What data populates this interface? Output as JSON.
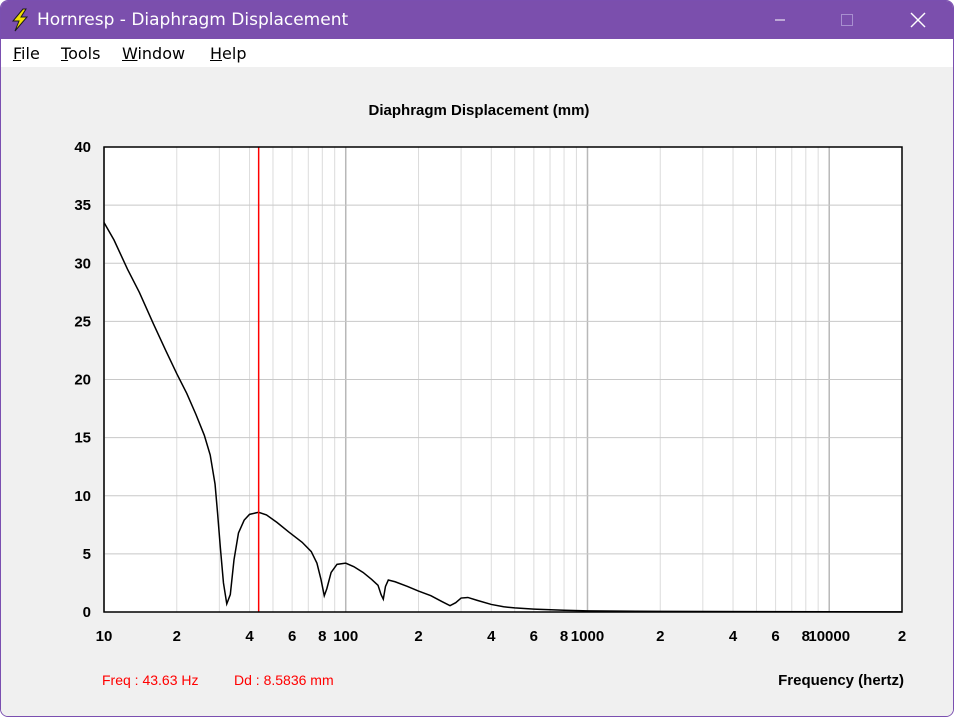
{
  "window": {
    "title": "Hornresp - Diaphragm Displacement",
    "titlebar_color": "#7b4fad",
    "app_icon": "lightning-bolt-icon"
  },
  "menu": {
    "items": [
      {
        "id": "file",
        "mnemonic": "F",
        "rest": "ile"
      },
      {
        "id": "tools",
        "mnemonic": "T",
        "rest": "ools"
      },
      {
        "id": "window",
        "mnemonic": "W",
        "rest": "indow"
      },
      {
        "id": "help",
        "mnemonic": "H",
        "rest": "elp"
      }
    ]
  },
  "status": {
    "freq": "Freq : 43.63 Hz",
    "dd": "Dd : 8.5836 mm",
    "color": "#ff0000"
  },
  "chart_data": {
    "type": "line",
    "title": "Diaphragm Displacement (mm)",
    "xlabel": "Frequency (hertz)",
    "ylabel": "",
    "x_scale": "log",
    "xlim": [
      10,
      20000
    ],
    "ylim": [
      0,
      40
    ],
    "grid": true,
    "y_ticks": [
      "0",
      "5",
      "10",
      "15",
      "20",
      "25",
      "30",
      "35",
      "40"
    ],
    "y_tick_values": [
      0,
      5,
      10,
      15,
      20,
      25,
      30,
      35,
      40
    ],
    "x_ticks": [
      {
        "value": 10,
        "label": "10"
      },
      {
        "value": 20,
        "label": "2"
      },
      {
        "value": 40,
        "label": "4"
      },
      {
        "value": 60,
        "label": "6"
      },
      {
        "value": 80,
        "label": "8"
      },
      {
        "value": 100,
        "label": "100"
      },
      {
        "value": 200,
        "label": "2"
      },
      {
        "value": 400,
        "label": "4"
      },
      {
        "value": 600,
        "label": "6"
      },
      {
        "value": 800,
        "label": "8"
      },
      {
        "value": 1000,
        "label": "1000"
      },
      {
        "value": 2000,
        "label": "2"
      },
      {
        "value": 4000,
        "label": "4"
      },
      {
        "value": 6000,
        "label": "6"
      },
      {
        "value": 8000,
        "label": "8"
      },
      {
        "value": 10000,
        "label": "10000"
      },
      {
        "value": 20000,
        "label": "2"
      }
    ],
    "cursor": {
      "x": 43.63,
      "y": 8.5836,
      "color": "#ff0000"
    },
    "series": [
      {
        "color": "#000000",
        "points": [
          [
            10,
            33.5
          ],
          [
            11,
            32.0
          ],
          [
            12.5,
            29.5
          ],
          [
            14,
            27.5
          ],
          [
            16,
            24.8
          ],
          [
            18,
            22.5
          ],
          [
            20,
            20.5
          ],
          [
            22,
            18.8
          ],
          [
            24,
            17.0
          ],
          [
            26,
            15.2
          ],
          [
            27.5,
            13.5
          ],
          [
            28.8,
            11.0
          ],
          [
            29.5,
            8.5
          ],
          [
            30.3,
            5.5
          ],
          [
            31.2,
            2.5
          ],
          [
            32.2,
            0.7
          ],
          [
            33.3,
            1.5
          ],
          [
            34.5,
            4.5
          ],
          [
            36,
            6.8
          ],
          [
            38,
            7.9
          ],
          [
            40,
            8.4
          ],
          [
            43.6,
            8.58
          ],
          [
            47,
            8.35
          ],
          [
            52,
            7.7
          ],
          [
            58,
            6.9
          ],
          [
            66,
            6.0
          ],
          [
            72,
            5.2
          ],
          [
            76,
            4.2
          ],
          [
            79,
            2.8
          ],
          [
            81.5,
            1.4
          ],
          [
            83.5,
            2.0
          ],
          [
            87,
            3.4
          ],
          [
            92,
            4.1
          ],
          [
            100,
            4.2
          ],
          [
            108,
            3.9
          ],
          [
            118,
            3.4
          ],
          [
            128,
            2.8
          ],
          [
            136,
            2.3
          ],
          [
            140,
            1.5
          ],
          [
            143,
            1.1
          ],
          [
            146,
            2.2
          ],
          [
            150,
            2.75
          ],
          [
            160,
            2.6
          ],
          [
            180,
            2.2
          ],
          [
            200,
            1.8
          ],
          [
            225,
            1.4
          ],
          [
            250,
            0.9
          ],
          [
            270,
            0.55
          ],
          [
            285,
            0.8
          ],
          [
            300,
            1.2
          ],
          [
            320,
            1.25
          ],
          [
            350,
            1.0
          ],
          [
            400,
            0.65
          ],
          [
            450,
            0.45
          ],
          [
            500,
            0.35
          ],
          [
            600,
            0.25
          ],
          [
            800,
            0.15
          ],
          [
            1000,
            0.1
          ],
          [
            2000,
            0.05
          ],
          [
            5000,
            0.03
          ],
          [
            10000,
            0.02
          ],
          [
            20000,
            0.01
          ]
        ]
      }
    ]
  }
}
